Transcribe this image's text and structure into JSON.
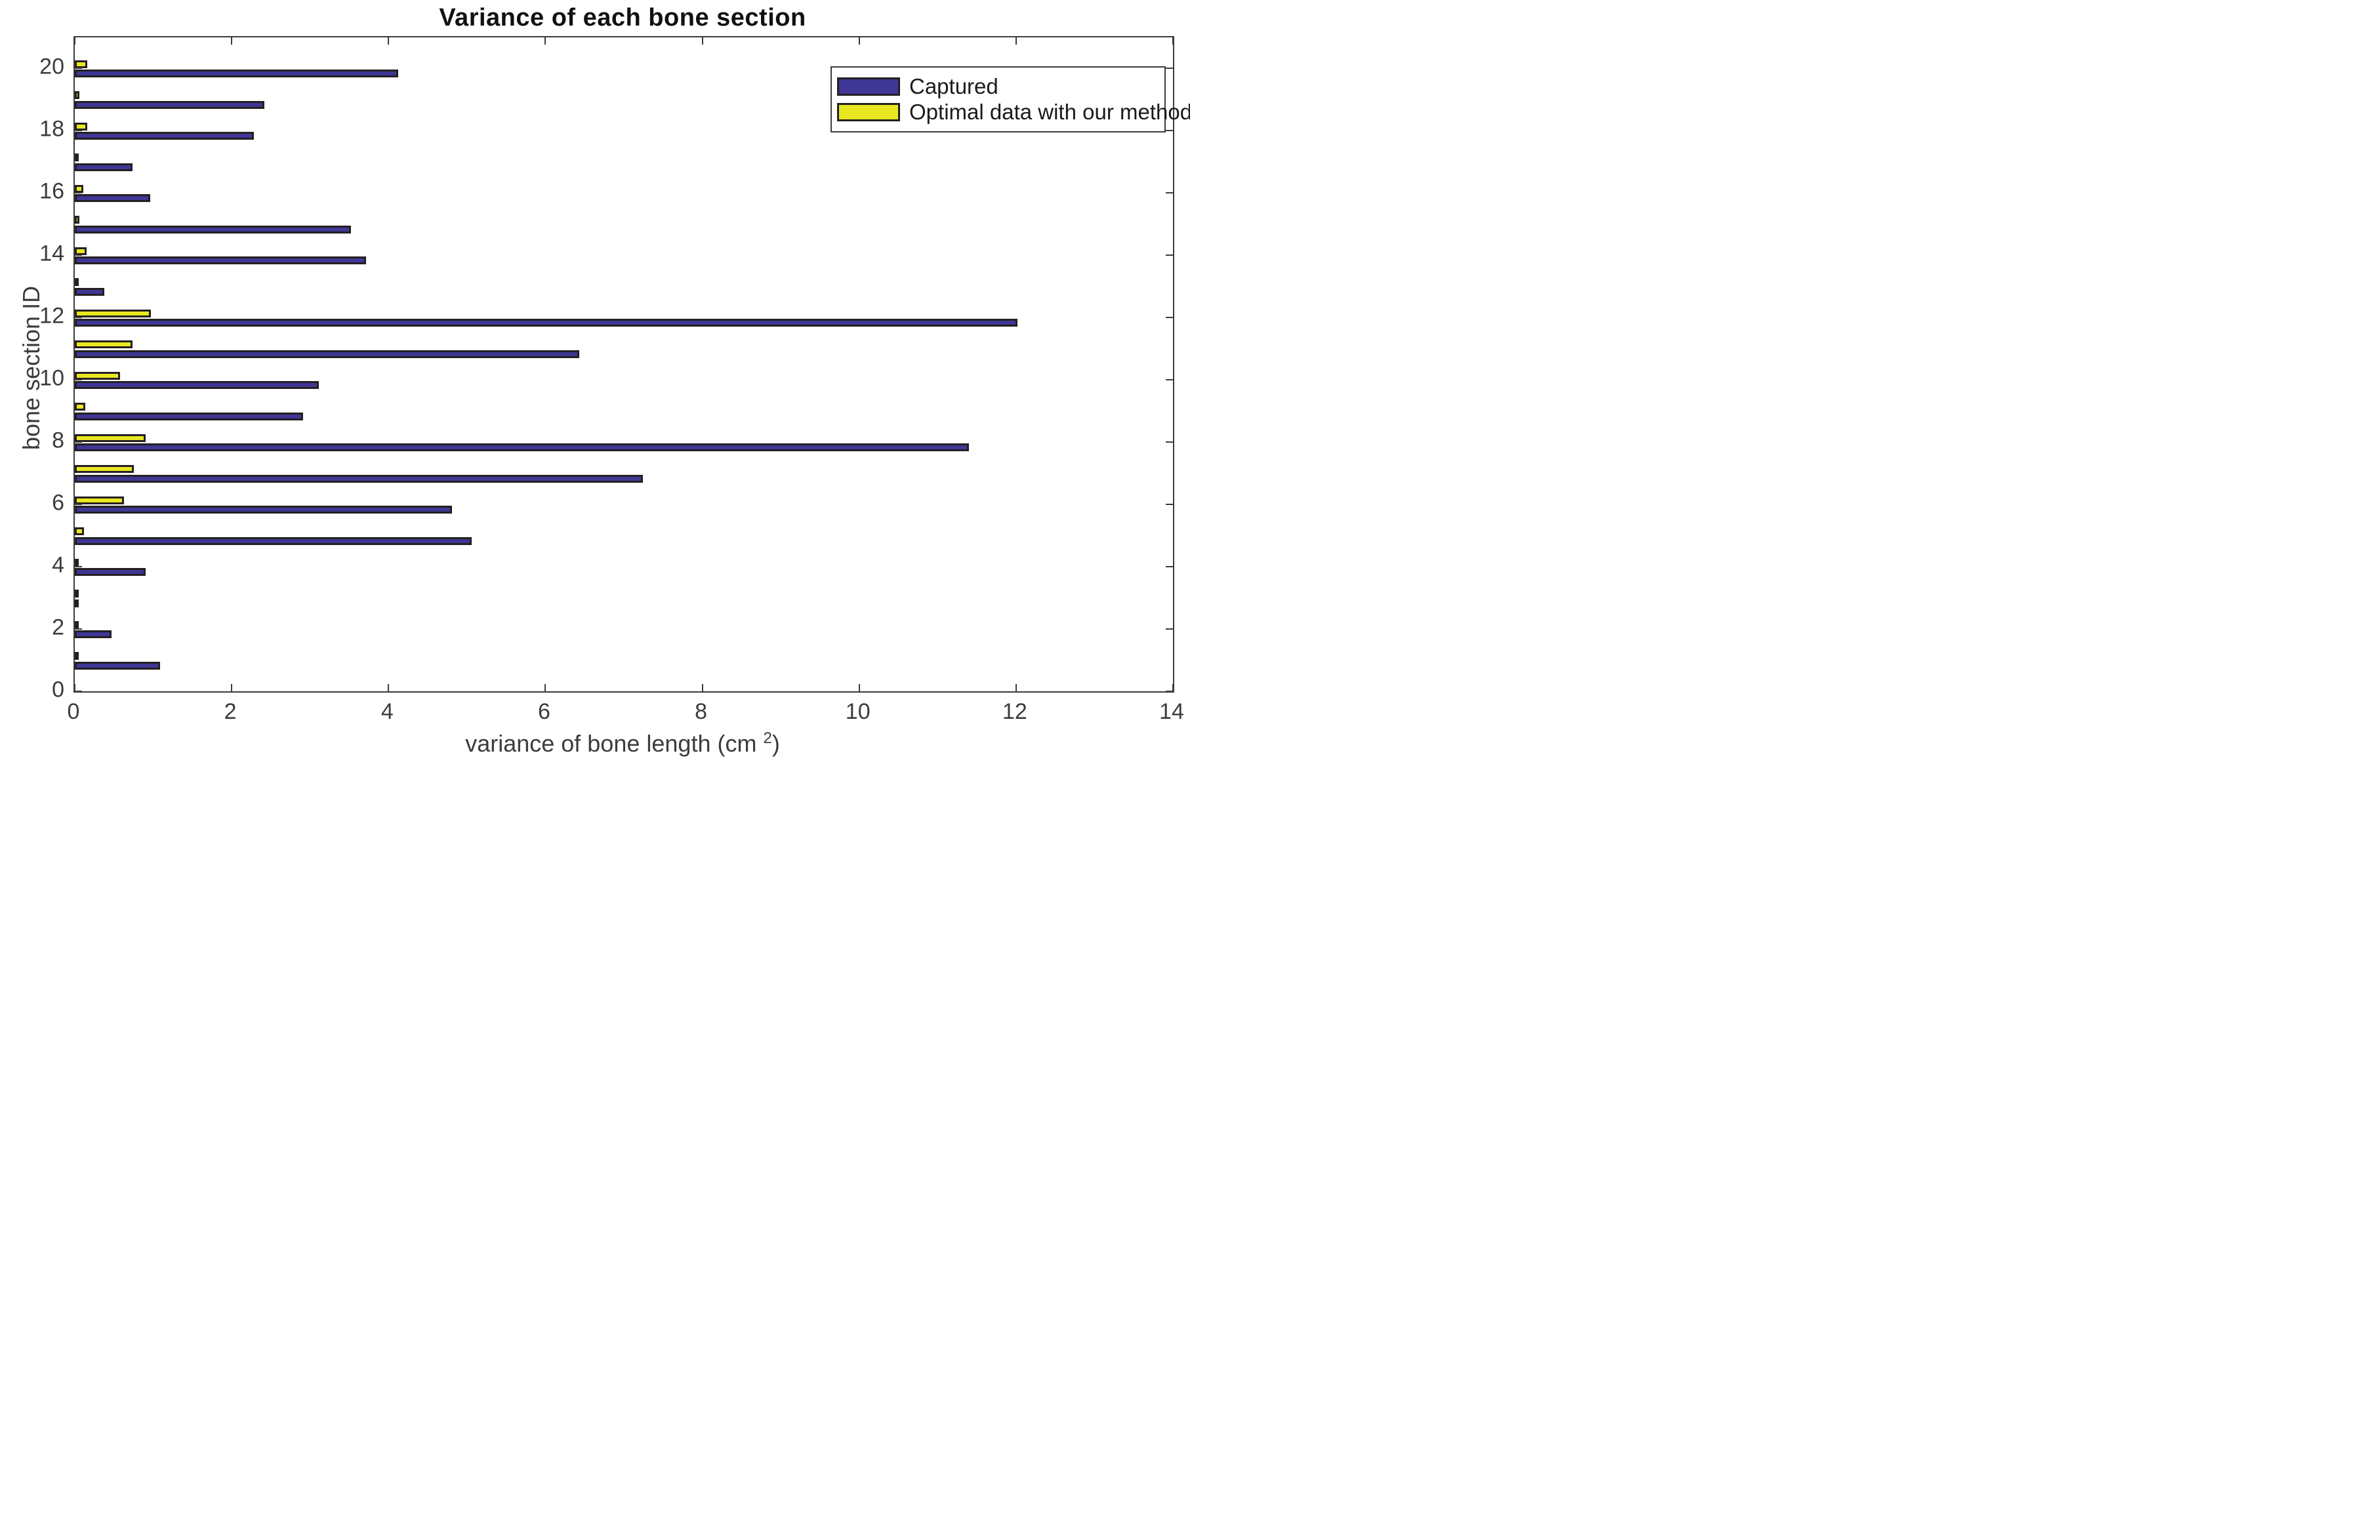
{
  "title": "Variance of each bone section",
  "axes": {
    "xlabel_prefix": "variance of bone length (cm ",
    "xlabel_sup": "2",
    "xlabel_suffix": ")",
    "ylabel": "bone section ID",
    "x_ticks": [
      0,
      2,
      4,
      6,
      8,
      10,
      12,
      14
    ],
    "y_ticks": [
      0,
      2,
      4,
      6,
      8,
      10,
      12,
      14,
      16,
      18,
      20
    ],
    "xlim": [
      0,
      14
    ],
    "ylim": [
      0,
      21
    ]
  },
  "legend": {
    "position": "top-right",
    "entries": [
      {
        "label": "Captured",
        "color": "#3f3695"
      },
      {
        "label": "Optimal data with our method",
        "color": "#e9e721"
      }
    ]
  },
  "colors": {
    "captured_fill": "#3f3695",
    "optimal_fill": "#e9e721",
    "bar_edge": "#242021",
    "axis": "#3c3c3c",
    "title_text": "#111111",
    "background": "#ffffff"
  },
  "chart_data": {
    "type": "bar",
    "orientation": "horizontal",
    "title": "Variance of each bone section",
    "xlabel": "variance of bone length (cm 2)",
    "ylabel": "bone section ID",
    "xlim": [
      0,
      14
    ],
    "ylim": [
      0,
      21
    ],
    "grid": false,
    "legend_position": "top-right",
    "categories": [
      1,
      2,
      3,
      4,
      5,
      6,
      7,
      8,
      9,
      10,
      11,
      12,
      13,
      14,
      15,
      16,
      17,
      18,
      19,
      20
    ],
    "series": [
      {
        "name": "Captured",
        "color": "#3f3695",
        "values": [
          1.09,
          0.47,
          0.05,
          0.9,
          5.06,
          4.81,
          7.24,
          11.4,
          2.91,
          3.11,
          6.43,
          12.02,
          0.38,
          3.71,
          3.52,
          0.96,
          0.74,
          2.28,
          2.42,
          4.12
        ]
      },
      {
        "name": "Optimal data with our method",
        "color": "#e9e721",
        "values": [
          0.03,
          0.01,
          0.01,
          0.02,
          0.12,
          0.63,
          0.75,
          0.9,
          0.13,
          0.58,
          0.74,
          0.97,
          0.02,
          0.15,
          0.06,
          0.11,
          0.02,
          0.16,
          0.06,
          0.16
        ]
      }
    ]
  }
}
